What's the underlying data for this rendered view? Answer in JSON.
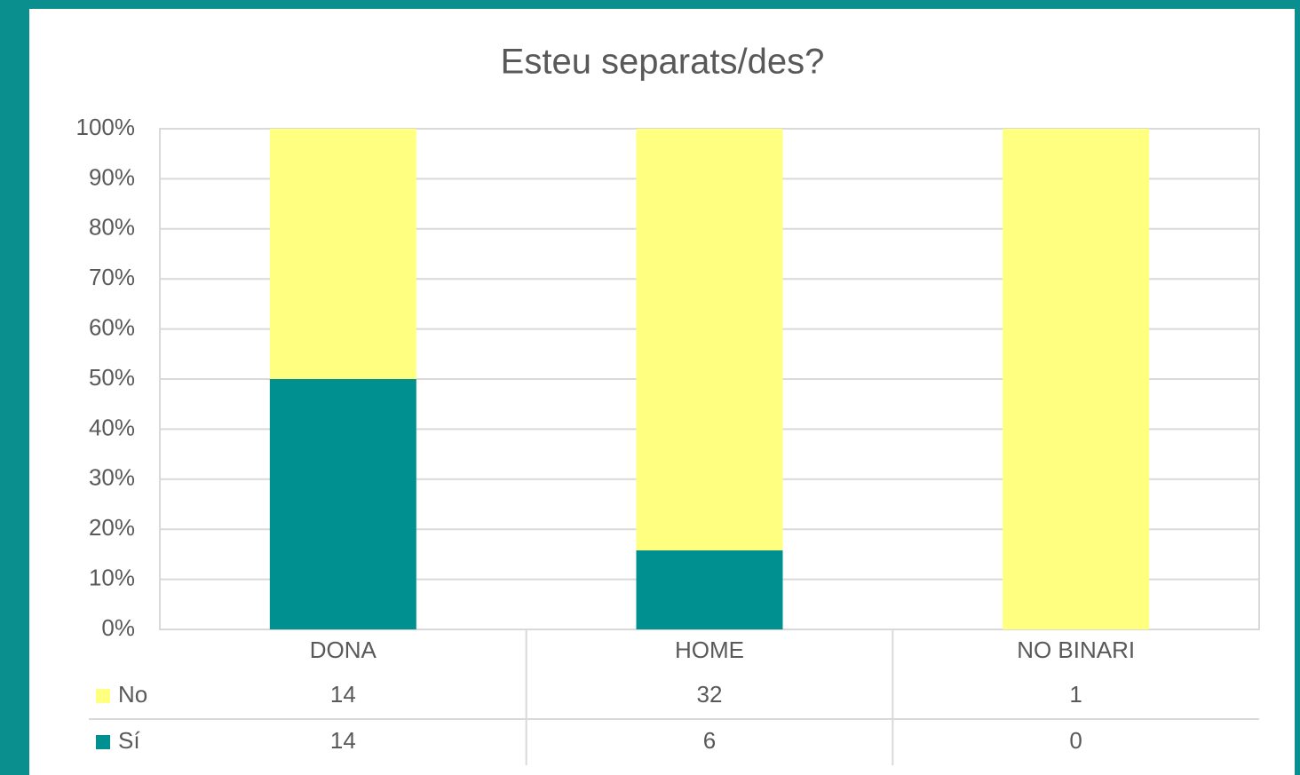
{
  "chart_data": {
    "type": "bar",
    "stacking": "percent",
    "title": "Esteu separats/des?",
    "categories": [
      "DONA",
      "HOME",
      "NO BINARI"
    ],
    "series": [
      {
        "name": "Sí",
        "color": "#009090",
        "values": [
          14,
          6,
          0
        ]
      },
      {
        "name": "No",
        "color": "#ffff80",
        "values": [
          14,
          32,
          1
        ]
      }
    ],
    "ylim": [
      0,
      100
    ],
    "yticks": [
      {
        "value": 0,
        "label": "0%"
      },
      {
        "value": 10,
        "label": "10%"
      },
      {
        "value": 20,
        "label": "20%"
      },
      {
        "value": 30,
        "label": "30%"
      },
      {
        "value": 40,
        "label": "40%"
      },
      {
        "value": 50,
        "label": "50%"
      },
      {
        "value": 60,
        "label": "60%"
      },
      {
        "value": 70,
        "label": "70%"
      },
      {
        "value": 80,
        "label": "80%"
      },
      {
        "value": 90,
        "label": "90%"
      },
      {
        "value": 100,
        "label": "100%"
      }
    ],
    "grid": true,
    "data_table": true
  }
}
